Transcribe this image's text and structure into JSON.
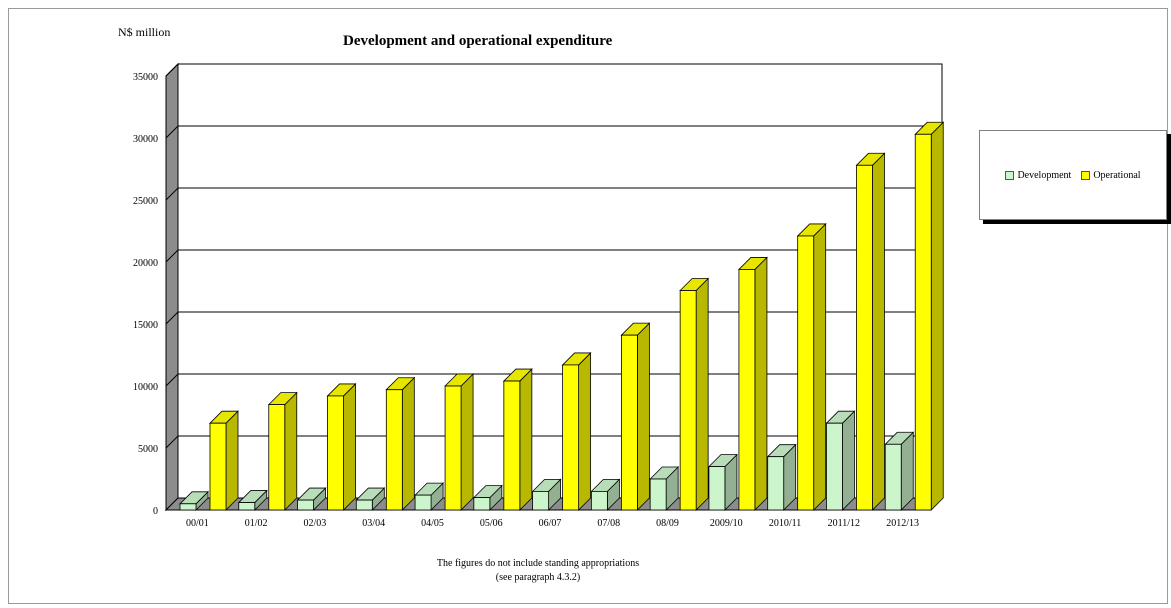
{
  "chart_data": {
    "type": "bar",
    "title": "Development and operational expenditure",
    "unit_label": "N$ million",
    "categories": [
      "00/01",
      "01/02",
      "02/03",
      "03/04",
      "04/05",
      "05/06",
      "06/07",
      "07/08",
      "08/09",
      "2009/10",
      "2010/11",
      "2011/12",
      "2012/13"
    ],
    "series": [
      {
        "name": "Development",
        "color": "#ccf5cc",
        "values": [
          500,
          600,
          800,
          800,
          1200,
          1000,
          1500,
          1500,
          2500,
          3500,
          4300,
          7000,
          5300
        ]
      },
      {
        "name": "Operational",
        "color": "#ffff00",
        "values": [
          7000,
          8500,
          9200,
          9700,
          10000,
          10400,
          11700,
          14100,
          17700,
          19400,
          22100,
          27800,
          30300
        ]
      }
    ],
    "ylim": [
      0,
      35000
    ],
    "yticks": [
      0,
      5000,
      10000,
      15000,
      20000,
      25000,
      30000,
      35000
    ],
    "ytick_labels": [
      "0",
      "5000",
      "10000",
      "15000",
      "20000",
      "25000",
      "30000",
      "35000"
    ],
    "grid": true,
    "legend_position": "right",
    "note_line1": "The figures do not include standing appropriations",
    "note_line2": "(see paragraph 4.3.2)"
  }
}
